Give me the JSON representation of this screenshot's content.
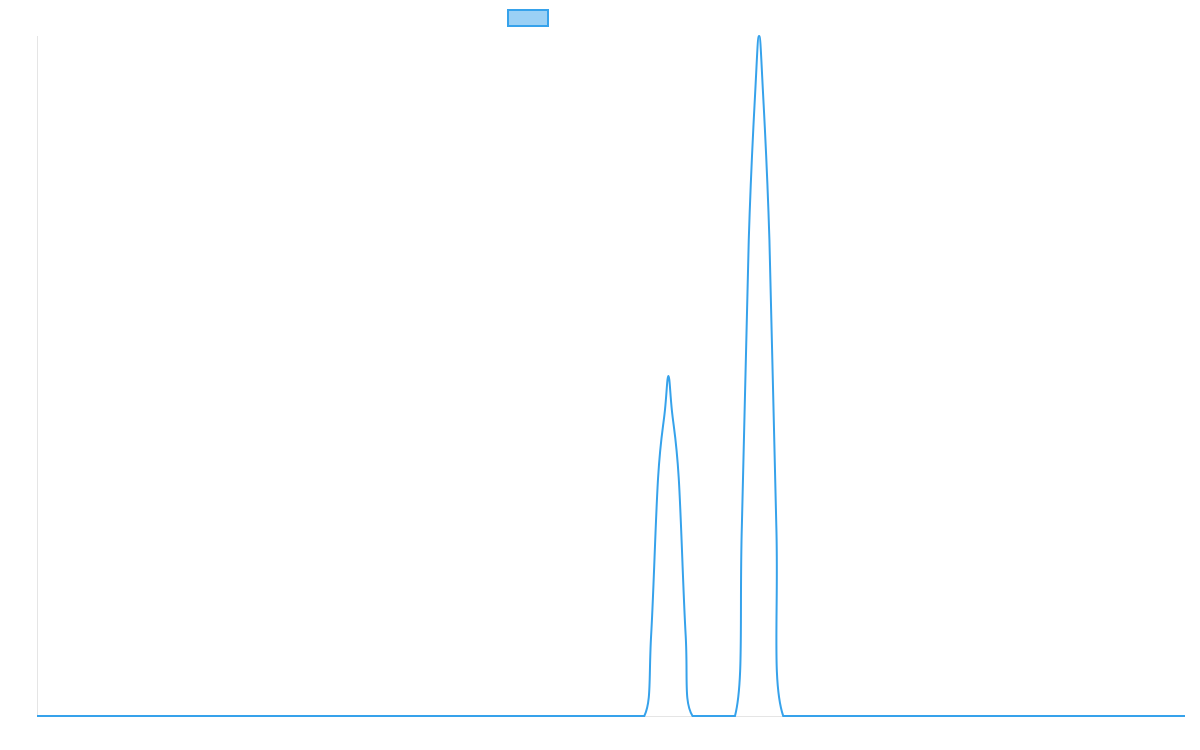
{
  "colors": {
    "series_stroke": "#36a2eb",
    "legend_fill": "#9ad0f5",
    "axis": "#e5e5e5"
  },
  "chart_data": {
    "type": "line",
    "title": "",
    "xlabel": "",
    "ylabel": "",
    "grid": false,
    "legend_position": "top",
    "xlim": [
      0,
      100
    ],
    "ylim": [
      0,
      100
    ],
    "series": [
      {
        "name": "",
        "color": "#36a2eb",
        "x": [
          0,
          10,
          20,
          30,
          40,
          50,
          52.9,
          53.5,
          54.1,
          54.7,
          55.0,
          55.3,
          55.9,
          56.5,
          57.1,
          60.8,
          61.4,
          62.0,
          62.6,
          62.9,
          63.2,
          63.8,
          64.4,
          65.0,
          70,
          80,
          90,
          100
        ],
        "y": [
          0,
          0,
          0,
          0,
          0,
          0,
          0,
          12,
          35,
          45,
          50,
          45,
          35,
          12,
          0,
          0,
          28,
          70,
          93,
          100,
          93,
          70,
          28,
          0,
          0,
          0,
          0,
          0
        ]
      }
    ]
  }
}
